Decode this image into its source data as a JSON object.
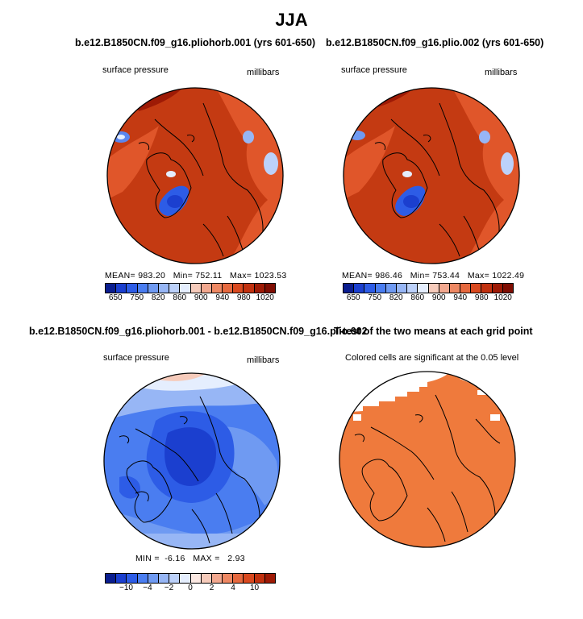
{
  "season": "JJA",
  "palette": {
    "negative": [
      "#0a1d8f",
      "#1b3fcf",
      "#2d5ce6",
      "#4a7df0",
      "#6f9af2",
      "#97b6f5",
      "#bcd1fa",
      "#e5eefe"
    ],
    "positive": [
      "#fbe8e2",
      "#f6cbbb",
      "#f2a88f",
      "#ee8863",
      "#e6693f",
      "#d9491f",
      "#c1310f",
      "#9e1a05",
      "#7f0d02"
    ],
    "map_red": "#c43a12",
    "map_orange": "#e0562a",
    "sig_orange": "#ef7a3c"
  },
  "panels": [
    {
      "id": "control",
      "title": "b.e12.B1850CN.f09_g16.pliohorb.001 (yrs 601-650)",
      "left_label": "surface pressure",
      "right_label": "millibars",
      "stats": {
        "mean_label": "MEAN=",
        "mean": "983.20",
        "min_label": "Min=",
        "min": "752.11",
        "max_label": "Max=",
        "max": "1023.53"
      },
      "colorbar_ticks": [
        "650",
        "750",
        "820",
        "860",
        "900",
        "940",
        "980",
        "1020"
      ]
    },
    {
      "id": "experiment",
      "title": "b.e12.B1850CN.f09_g16.plio.002 (yrs 601-650)",
      "left_label": "surface pressure",
      "right_label": "millibars",
      "stats": {
        "mean_label": "MEAN=",
        "mean": "986.46",
        "min_label": "Min=",
        "min": "753.44",
        "max_label": "Max=",
        "max": "1022.49"
      },
      "colorbar_ticks": [
        "650",
        "750",
        "820",
        "860",
        "900",
        "940",
        "980",
        "1020"
      ]
    },
    {
      "id": "difference",
      "title": "b.e12.B1850CN.f09_g16.pliohorb.001 - b.e12.B1850CN.f09_g16.plio.002",
      "left_label": "surface pressure",
      "right_label": "millibars",
      "stats": {
        "min_label": "MIN =",
        "min": "-6.16",
        "max_label": "MAX =",
        "max": "2.93"
      },
      "colorbar_ticks": [
        "−10",
        "−4",
        "−2",
        "0",
        "2",
        "4",
        "10"
      ]
    },
    {
      "id": "ttest",
      "title": "T-test of the two means at each grid point",
      "caption": "Colored cells are significant at the 0.05 level"
    }
  ]
}
